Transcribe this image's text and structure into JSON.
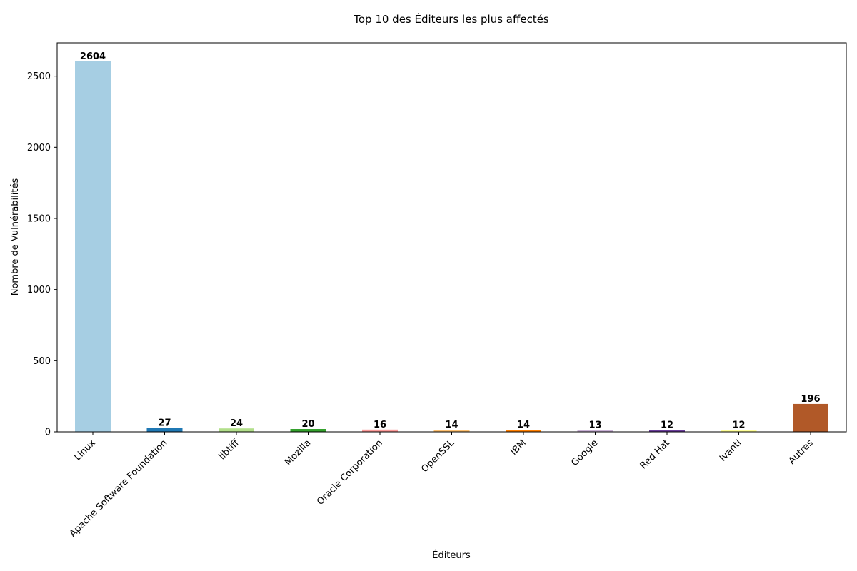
{
  "chart_data": {
    "type": "bar",
    "title": "Top 10 des Éditeurs les plus affectés",
    "xlabel": "Éditeurs",
    "ylabel": "Nombre de Vulnérabilités",
    "categories": [
      "Linux",
      "Apache Software Foundation",
      "libtiff",
      "Mozilla",
      "Oracle Corporation",
      "OpenSSL",
      "IBM",
      "Google",
      "Red Hat",
      "Ivanti",
      "Autres"
    ],
    "values": [
      2604,
      27,
      24,
      20,
      16,
      14,
      14,
      13,
      12,
      12,
      196
    ],
    "colors": [
      "#a6cee3",
      "#1f78b4",
      "#b2df8a",
      "#33a02c",
      "#fb9a99",
      "#fdbf6f",
      "#ff7f00",
      "#cab2d6",
      "#6a3d9a",
      "#ffff99",
      "#b15928"
    ],
    "ylim": [
      0,
      2734
    ],
    "yticks": [
      0,
      500,
      1000,
      1500,
      2000,
      2500
    ],
    "grid": false,
    "legend": "none"
  }
}
